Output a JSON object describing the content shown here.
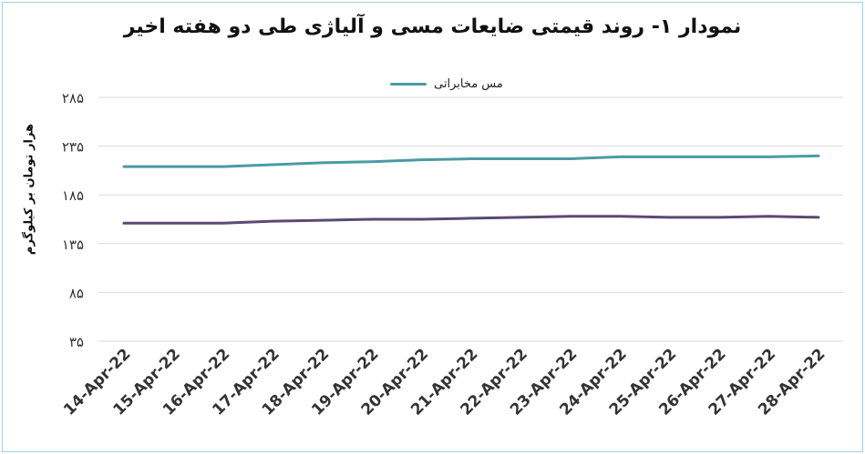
{
  "chart_data": {
    "type": "line",
    "title": "نمودار ۱- روند قیمتی ضایعات مسی و آلیاژی طی دو هفته اخیر",
    "ylabel": "هزار تومان بر کیلوگرم",
    "xlabel": "",
    "ylim": [
      35,
      285
    ],
    "yticks": [
      "۳۵",
      "۸۵",
      "۱۳۵",
      "۱۸۵",
      "۲۳۵",
      "۲۸۵"
    ],
    "categories": [
      "14-Apr-22",
      "15-Apr-22",
      "16-Apr-22",
      "17-Apr-22",
      "18-Apr-22",
      "19-Apr-22",
      "20-Apr-22",
      "21-Apr-22",
      "22-Apr-22",
      "23-Apr-22",
      "24-Apr-22",
      "25-Apr-22",
      "26-Apr-22",
      "27-Apr-22",
      "28-Apr-22"
    ],
    "series": [
      {
        "name": "مس مخابراتی",
        "color": "#4a9ba3",
        "values": [
          214,
          214,
          214,
          216,
          218,
          219,
          221,
          222,
          222,
          222,
          224,
          224,
          224,
          224,
          225
        ]
      },
      {
        "color": "#5b4a72",
        "values": [
          156,
          156,
          156,
          158,
          159,
          160,
          160,
          161,
          162,
          163,
          163,
          162,
          162,
          163,
          162
        ]
      }
    ],
    "grid": true,
    "legend": "top-center"
  }
}
